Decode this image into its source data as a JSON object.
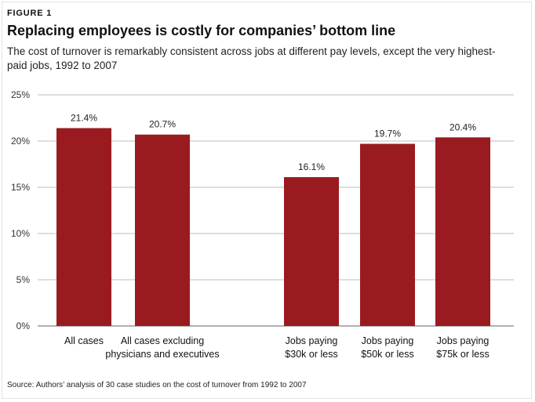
{
  "figure_label": "FIGURE 1",
  "chart_data": {
    "type": "bar",
    "title": "Replacing employees is costly for companies’ bottom line",
    "subtitle": "The cost of turnover is remarkably consistent across jobs at different pay levels, except the very highest-paid jobs, 1992 to 2007",
    "categories": [
      [
        "All cases"
      ],
      [
        "All cases excluding",
        "physicians and executives"
      ],
      [
        "Jobs paying",
        "$30k or less"
      ],
      [
        "Jobs paying",
        "$50k or less"
      ],
      [
        "Jobs paying",
        "$75k or less"
      ]
    ],
    "values": [
      21.4,
      20.7,
      16.1,
      19.7,
      20.4
    ],
    "data_labels": [
      "21.4%",
      "20.7%",
      "16.1%",
      "19.7%",
      "20.4%"
    ],
    "ylim": [
      0,
      25
    ],
    "y_ticks": [
      0,
      5,
      10,
      15,
      20,
      25
    ],
    "y_tick_labels": [
      "0%",
      "5%",
      "10%",
      "15%",
      "20%",
      "25%"
    ],
    "xlabel": "",
    "ylabel": "",
    "grid": true,
    "bar_color": "#9a1b1f",
    "grid_color": "#bdbdbd"
  },
  "source": "Source: Authors’ analysis of 30 case studies on the cost of turnover from 1992 to 2007"
}
